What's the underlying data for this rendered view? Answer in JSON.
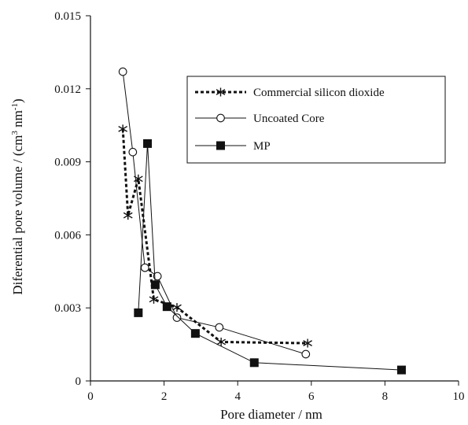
{
  "chart_data": {
    "type": "line",
    "xlabel": "Pore diameter / nm",
    "ylabel": "Diferential pore volume / (cm",
    "ylabel_sup1": "3",
    "ylabel_mid": " nm",
    "ylabel_sup2": "-1",
    "ylabel_end": ")",
    "xlim": [
      0,
      10
    ],
    "ylim": [
      0,
      0.015
    ],
    "xticks": [
      "0",
      "2",
      "4",
      "6",
      "8",
      "10"
    ],
    "yticks": [
      "0",
      "0.003",
      "0.006",
      "0.009",
      "0.012",
      "0.015"
    ],
    "grid": false,
    "legend_position": "top-right",
    "series": [
      {
        "name": "Commercial silicon dioxide",
        "marker": "asterisk",
        "line": "dashed",
        "x": [
          0.88,
          1.02,
          1.3,
          1.72,
          2.35,
          3.55,
          5.9
        ],
        "y": [
          0.01035,
          0.0068,
          0.0083,
          0.00335,
          0.00302,
          0.0016,
          0.00155
        ]
      },
      {
        "name": "Uncoated Core",
        "marker": "open-circle",
        "line": "solid",
        "x": [
          0.88,
          1.15,
          1.48,
          1.82,
          2.35,
          3.5,
          5.85
        ],
        "y": [
          0.0127,
          0.0094,
          0.00465,
          0.0043,
          0.0026,
          0.0022,
          0.0011
        ]
      },
      {
        "name": "MP",
        "marker": "filled-square",
        "line": "solid",
        "x": [
          1.3,
          1.55,
          1.76,
          2.08,
          2.85,
          4.45,
          8.45
        ],
        "y": [
          0.0028,
          0.00975,
          0.00395,
          0.00305,
          0.00195,
          0.00075,
          0.00045
        ]
      }
    ]
  }
}
